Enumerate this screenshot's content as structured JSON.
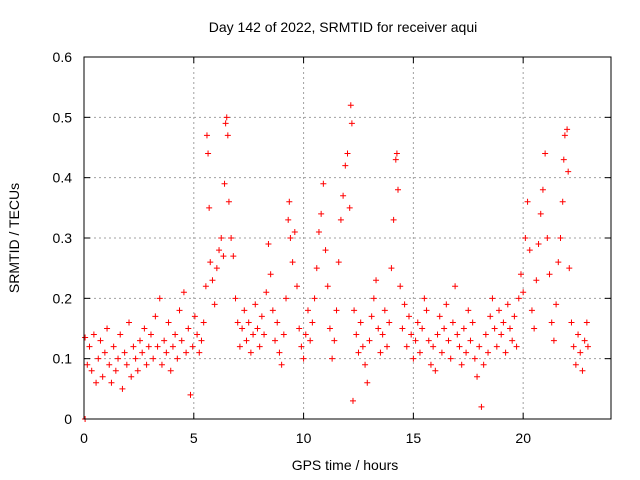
{
  "chart_data": {
    "type": "scatter",
    "title": "Day 142 of 2022, SRMTID for receiver aqui",
    "xlabel": "GPS time / hours",
    "ylabel": "SRMTID / TECUs",
    "xlim": [
      0,
      24
    ],
    "ylim": [
      0,
      0.6
    ],
    "xticks": [
      0,
      5,
      10,
      15,
      20
    ],
    "xtick_labels": [
      "0",
      "5",
      "10",
      "15",
      "20"
    ],
    "yticks": [
      0,
      0.1,
      0.2,
      0.3,
      0.4,
      0.5,
      0.6
    ],
    "ytick_labels": [
      "0",
      "0.1",
      "0.2",
      "0.3",
      "0.4",
      "0.5",
      "0.6"
    ],
    "grid": true,
    "marker": "+",
    "color": "#ff0000",
    "series": [
      {
        "name": "SRMTID",
        "points": [
          [
            0.05,
            0.0
          ],
          [
            0.05,
            0.135
          ],
          [
            0.15,
            0.09
          ],
          [
            0.25,
            0.12
          ],
          [
            0.35,
            0.08
          ],
          [
            0.45,
            0.14
          ],
          [
            0.55,
            0.06
          ],
          [
            0.65,
            0.1
          ],
          [
            0.75,
            0.13
          ],
          [
            0.85,
            0.07
          ],
          [
            0.95,
            0.11
          ],
          [
            1.05,
            0.15
          ],
          [
            1.15,
            0.09
          ],
          [
            1.25,
            0.06
          ],
          [
            1.35,
            0.12
          ],
          [
            1.45,
            0.08
          ],
          [
            1.55,
            0.1
          ],
          [
            1.65,
            0.14
          ],
          [
            1.75,
            0.05
          ],
          [
            1.85,
            0.11
          ],
          [
            1.95,
            0.09
          ],
          [
            2.05,
            0.16
          ],
          [
            2.15,
            0.07
          ],
          [
            2.25,
            0.12
          ],
          [
            2.35,
            0.1
          ],
          [
            2.45,
            0.08
          ],
          [
            2.55,
            0.13
          ],
          [
            2.65,
            0.11
          ],
          [
            2.75,
            0.15
          ],
          [
            2.85,
            0.09
          ],
          [
            2.95,
            0.12
          ],
          [
            3.05,
            0.14
          ],
          [
            3.15,
            0.1
          ],
          [
            3.25,
            0.17
          ],
          [
            3.35,
            0.12
          ],
          [
            3.45,
            0.2
          ],
          [
            3.55,
            0.09
          ],
          [
            3.65,
            0.13
          ],
          [
            3.75,
            0.11
          ],
          [
            3.85,
            0.16
          ],
          [
            3.95,
            0.08
          ],
          [
            4.05,
            0.12
          ],
          [
            4.15,
            0.14
          ],
          [
            4.25,
            0.1
          ],
          [
            4.35,
            0.18
          ],
          [
            4.45,
            0.13
          ],
          [
            4.55,
            0.21
          ],
          [
            4.65,
            0.11
          ],
          [
            4.75,
            0.15
          ],
          [
            4.85,
            0.04
          ],
          [
            4.95,
            0.12
          ],
          [
            5.05,
            0.17
          ],
          [
            5.15,
            0.14
          ],
          [
            5.25,
            0.11
          ],
          [
            5.35,
            0.13
          ],
          [
            5.45,
            0.16
          ],
          [
            5.55,
            0.22
          ],
          [
            5.6,
            0.47
          ],
          [
            5.65,
            0.44
          ],
          [
            5.7,
            0.35
          ],
          [
            5.75,
            0.26
          ],
          [
            5.85,
            0.23
          ],
          [
            5.95,
            0.19
          ],
          [
            6.05,
            0.25
          ],
          [
            6.15,
            0.28
          ],
          [
            6.25,
            0.3
          ],
          [
            6.35,
            0.27
          ],
          [
            6.4,
            0.39
          ],
          [
            6.45,
            0.49
          ],
          [
            6.5,
            0.5
          ],
          [
            6.55,
            0.47
          ],
          [
            6.6,
            0.36
          ],
          [
            6.7,
            0.3
          ],
          [
            6.8,
            0.27
          ],
          [
            6.9,
            0.2
          ],
          [
            7.0,
            0.16
          ],
          [
            7.1,
            0.12
          ],
          [
            7.2,
            0.15
          ],
          [
            7.3,
            0.18
          ],
          [
            7.4,
            0.13
          ],
          [
            7.5,
            0.16
          ],
          [
            7.6,
            0.11
          ],
          [
            7.7,
            0.14
          ],
          [
            7.8,
            0.19
          ],
          [
            7.9,
            0.15
          ],
          [
            8.0,
            0.12
          ],
          [
            8.1,
            0.17
          ],
          [
            8.2,
            0.14
          ],
          [
            8.3,
            0.21
          ],
          [
            8.4,
            0.29
          ],
          [
            8.5,
            0.24
          ],
          [
            8.6,
            0.18
          ],
          [
            8.7,
            0.13
          ],
          [
            8.8,
            0.16
          ],
          [
            8.9,
            0.11
          ],
          [
            9.0,
            0.09
          ],
          [
            9.1,
            0.14
          ],
          [
            9.2,
            0.2
          ],
          [
            9.3,
            0.33
          ],
          [
            9.35,
            0.36
          ],
          [
            9.4,
            0.3
          ],
          [
            9.5,
            0.26
          ],
          [
            9.6,
            0.31
          ],
          [
            9.7,
            0.22
          ],
          [
            9.8,
            0.15
          ],
          [
            9.9,
            0.12
          ],
          [
            10.0,
            0.1
          ],
          [
            10.1,
            0.14
          ],
          [
            10.2,
            0.18
          ],
          [
            10.3,
            0.13
          ],
          [
            10.4,
            0.16
          ],
          [
            10.5,
            0.2
          ],
          [
            10.6,
            0.25
          ],
          [
            10.7,
            0.31
          ],
          [
            10.8,
            0.34
          ],
          [
            10.9,
            0.39
          ],
          [
            11.0,
            0.28
          ],
          [
            11.1,
            0.22
          ],
          [
            11.2,
            0.15
          ],
          [
            11.3,
            0.1
          ],
          [
            11.4,
            0.13
          ],
          [
            11.5,
            0.18
          ],
          [
            11.6,
            0.26
          ],
          [
            11.7,
            0.33
          ],
          [
            11.8,
            0.37
          ],
          [
            11.9,
            0.42
          ],
          [
            12.0,
            0.44
          ],
          [
            12.1,
            0.35
          ],
          [
            12.15,
            0.52
          ],
          [
            12.2,
            0.49
          ],
          [
            12.25,
            0.03
          ],
          [
            12.3,
            0.18
          ],
          [
            12.4,
            0.14
          ],
          [
            12.5,
            0.11
          ],
          [
            12.6,
            0.16
          ],
          [
            12.7,
            0.12
          ],
          [
            12.8,
            0.09
          ],
          [
            12.9,
            0.06
          ],
          [
            13.0,
            0.13
          ],
          [
            13.1,
            0.17
          ],
          [
            13.2,
            0.2
          ],
          [
            13.3,
            0.23
          ],
          [
            13.4,
            0.15
          ],
          [
            13.5,
            0.11
          ],
          [
            13.6,
            0.14
          ],
          [
            13.7,
            0.18
          ],
          [
            13.8,
            0.12
          ],
          [
            13.9,
            0.16
          ],
          [
            14.0,
            0.25
          ],
          [
            14.1,
            0.33
          ],
          [
            14.2,
            0.43
          ],
          [
            14.25,
            0.44
          ],
          [
            14.3,
            0.38
          ],
          [
            14.4,
            0.22
          ],
          [
            14.5,
            0.15
          ],
          [
            14.6,
            0.19
          ],
          [
            14.7,
            0.12
          ],
          [
            14.8,
            0.17
          ],
          [
            14.9,
            0.14
          ],
          [
            15.0,
            0.1
          ],
          [
            15.1,
            0.13
          ],
          [
            15.2,
            0.16
          ],
          [
            15.3,
            0.11
          ],
          [
            15.4,
            0.15
          ],
          [
            15.5,
            0.2
          ],
          [
            15.6,
            0.18
          ],
          [
            15.7,
            0.13
          ],
          [
            15.8,
            0.09
          ],
          [
            15.9,
            0.12
          ],
          [
            16.0,
            0.08
          ],
          [
            16.1,
            0.14
          ],
          [
            16.2,
            0.17
          ],
          [
            16.3,
            0.11
          ],
          [
            16.4,
            0.15
          ],
          [
            16.5,
            0.19
          ],
          [
            16.6,
            0.13
          ],
          [
            16.7,
            0.1
          ],
          [
            16.8,
            0.16
          ],
          [
            16.9,
            0.22
          ],
          [
            17.0,
            0.14
          ],
          [
            17.1,
            0.12
          ],
          [
            17.2,
            0.09
          ],
          [
            17.3,
            0.15
          ],
          [
            17.4,
            0.11
          ],
          [
            17.5,
            0.18
          ],
          [
            17.6,
            0.13
          ],
          [
            17.7,
            0.16
          ],
          [
            17.8,
            0.1
          ],
          [
            17.9,
            0.07
          ],
          [
            18.0,
            0.12
          ],
          [
            18.1,
            0.02
          ],
          [
            18.2,
            0.09
          ],
          [
            18.3,
            0.14
          ],
          [
            18.4,
            0.11
          ],
          [
            18.5,
            0.17
          ],
          [
            18.6,
            0.2
          ],
          [
            18.7,
            0.15
          ],
          [
            18.8,
            0.12
          ],
          [
            18.9,
            0.18
          ],
          [
            19.0,
            0.14
          ],
          [
            19.1,
            0.16
          ],
          [
            19.2,
            0.11
          ],
          [
            19.3,
            0.19
          ],
          [
            19.4,
            0.15
          ],
          [
            19.5,
            0.13
          ],
          [
            19.6,
            0.17
          ],
          [
            19.7,
            0.12
          ],
          [
            19.8,
            0.2
          ],
          [
            19.9,
            0.24
          ],
          [
            20.0,
            0.21
          ],
          [
            20.1,
            0.3
          ],
          [
            20.2,
            0.36
          ],
          [
            20.3,
            0.28
          ],
          [
            20.4,
            0.18
          ],
          [
            20.5,
            0.15
          ],
          [
            20.6,
            0.23
          ],
          [
            20.7,
            0.29
          ],
          [
            20.8,
            0.34
          ],
          [
            20.9,
            0.38
          ],
          [
            21.0,
            0.44
          ],
          [
            21.1,
            0.3
          ],
          [
            21.2,
            0.24
          ],
          [
            21.3,
            0.16
          ],
          [
            21.4,
            0.13
          ],
          [
            21.5,
            0.19
          ],
          [
            21.6,
            0.26
          ],
          [
            21.7,
            0.3
          ],
          [
            21.8,
            0.36
          ],
          [
            21.85,
            0.43
          ],
          [
            21.9,
            0.47
          ],
          [
            22.0,
            0.48
          ],
          [
            22.05,
            0.41
          ],
          [
            22.1,
            0.25
          ],
          [
            22.2,
            0.16
          ],
          [
            22.3,
            0.12
          ],
          [
            22.4,
            0.09
          ],
          [
            22.5,
            0.14
          ],
          [
            22.6,
            0.11
          ],
          [
            22.7,
            0.08
          ],
          [
            22.8,
            0.13
          ],
          [
            22.9,
            0.16
          ],
          [
            22.95,
            0.12
          ]
        ]
      }
    ]
  }
}
